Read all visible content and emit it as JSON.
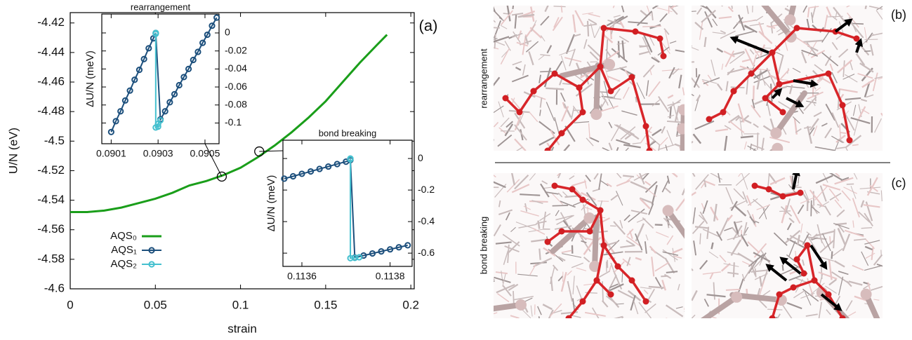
{
  "chart_data": [
    {
      "type": "line",
      "xlabel": "strain",
      "ylabel": "U/N  (eV)",
      "annotation": "(a)",
      "xlim": [
        0,
        0.202
      ],
      "ylim": [
        -4.6,
        -4.413
      ],
      "xticks": [
        0,
        0.05,
        0.1,
        0.15,
        0.2
      ],
      "yticks": [
        -4.6,
        -4.58,
        -4.56,
        -4.54,
        -4.52,
        -4.5,
        -4.48,
        -4.46,
        -4.44,
        -4.42
      ],
      "series": [
        {
          "name": "AQS₀",
          "color": "#1a9e1a",
          "x": [
            0,
            0.01,
            0.02,
            0.03,
            0.04,
            0.05,
            0.06,
            0.07,
            0.08,
            0.09,
            0.1,
            0.11,
            0.12,
            0.13,
            0.14,
            0.15,
            0.16,
            0.17,
            0.18,
            0.186
          ],
          "values": [
            -4.548,
            -4.548,
            -4.547,
            -4.545,
            -4.542,
            -4.539,
            -4.535,
            -4.53,
            -4.527,
            -4.523,
            -4.518,
            -4.511,
            -4.503,
            -4.494,
            -4.484,
            -4.473,
            -4.46,
            -4.447,
            -4.435,
            -4.428
          ]
        }
      ],
      "legend": [
        {
          "name": "AQS₁",
          "color": "#1c4f7c"
        },
        {
          "name": "AQS₂",
          "color": "#45c0cf"
        }
      ],
      "zoom_markers": {
        "x": [
          0.089,
          0.111
        ],
        "y": [
          -4.524,
          -4.507
        ]
      }
    },
    {
      "type": "line",
      "title": "rearrangement",
      "ylabel": "ΔU/N  (meV)",
      "xlim": [
        0.09006,
        0.09056
      ],
      "ylim": [
        -0.123,
        0.021
      ],
      "xticks": [
        0.0901,
        0.0903,
        0.0905
      ],
      "yticks": [
        0,
        -0.02,
        -0.04,
        -0.06,
        -0.08,
        -0.1
      ],
      "series": [
        {
          "color": "#1c4f7c",
          "marker": "circle",
          "x": [
            0.0901,
            0.09012,
            0.09014,
            0.09016,
            0.09018,
            0.0902,
            0.09022,
            0.09024,
            0.09026,
            0.09028,
            0.09029,
            0.09031,
            0.09033,
            0.09035,
            0.09037,
            0.09039,
            0.09041,
            0.09043,
            0.09045,
            0.09047,
            0.09049,
            0.09051,
            0.09053,
            0.09055
          ],
          "values": [
            -0.11,
            -0.098,
            -0.087,
            -0.075,
            -0.064,
            -0.052,
            -0.041,
            -0.029,
            -0.017,
            -0.006,
            0,
            -0.096,
            -0.087,
            -0.077,
            -0.068,
            -0.058,
            -0.049,
            -0.04,
            -0.03,
            -0.021,
            -0.011,
            -0.002,
            0.008,
            0.017
          ]
        },
        {
          "color": "#45c0cf",
          "marker": "circle",
          "x": [
            0.09029,
            0.09029,
            0.09029,
            0.0903,
            0.0903,
            0.09031
          ],
          "values": [
            0,
            -0.001,
            -0.105,
            -0.104,
            -0.101,
            -0.097
          ]
        }
      ]
    },
    {
      "type": "line",
      "title": "bond breaking",
      "ylabel": "ΔU/N  (meV)",
      "xlim": [
        0.113557,
        0.11385
      ],
      "ylim": [
        -0.684,
        0.116
      ],
      "xticks": [
        0.1136,
        0.1138
      ],
      "yticks": [
        0,
        -0.2,
        -0.4,
        -0.6
      ],
      "series": [
        {
          "color": "#1c4f7c",
          "marker": "circle",
          "x": [
            0.11356,
            0.11358,
            0.1136,
            0.11362,
            0.11364,
            0.11366,
            0.11368,
            0.1137,
            0.11371,
            0.11372,
            0.11374,
            0.11376,
            0.11378,
            0.1138,
            0.11382,
            0.11384
          ],
          "values": [
            -0.128,
            -0.113,
            -0.097,
            -0.082,
            -0.066,
            -0.051,
            -0.035,
            -0.02,
            -0.01,
            -0.628,
            -0.615,
            -0.602,
            -0.589,
            -0.576,
            -0.563,
            -0.55
          ]
        },
        {
          "color": "#45c0cf",
          "marker": "circle",
          "x": [
            0.11371,
            0.11371,
            0.11371,
            0.11372,
            0.11373
          ],
          "values": [
            0,
            -0.005,
            -0.632,
            -0.63,
            -0.626
          ]
        }
      ]
    }
  ],
  "panels": {
    "labels": [
      "(b)",
      "(c)"
    ],
    "rows": [
      "rearrangement",
      "bond breaking"
    ]
  }
}
